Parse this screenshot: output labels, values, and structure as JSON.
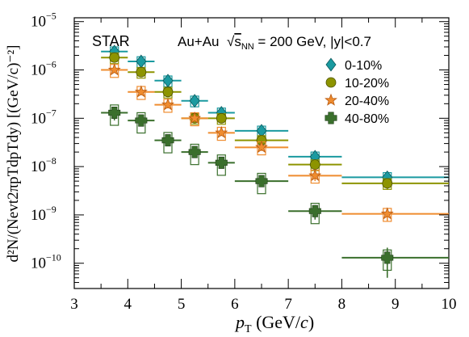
{
  "chart_data": {
    "type": "scatter",
    "title": "",
    "experiment_label": "STAR",
    "system_label": {
      "prefix": "Au+Au  ",
      "sqrt": "√",
      "s_main": "s",
      "s_sub": "NN",
      "suffix": " = 200 GeV, |y|<0.7"
    },
    "x_axis": {
      "label_main": "p",
      "label_sub": "T",
      "label_unit": " (GeV/",
      "label_unit_c": "c",
      "label_close": ")",
      "range": [
        3,
        10
      ],
      "ticks": [
        3,
        4,
        5,
        6,
        7,
        8,
        9,
        10
      ]
    },
    "y_axis": {
      "scale": "log",
      "range": [
        3e-11,
        1.2e-05
      ],
      "ticks": [
        {
          "value": 1e-10,
          "label_base": "10",
          "label_exp": "−10"
        },
        {
          "value": 1e-09,
          "label_base": "10",
          "label_exp": "−9"
        },
        {
          "value": 1e-08,
          "label_base": "10",
          "label_exp": "−8"
        },
        {
          "value": 1e-07,
          "label_base": "10",
          "label_exp": "−7"
        },
        {
          "value": 1e-06,
          "label_base": "10",
          "label_exp": "−6"
        },
        {
          "value": 1e-05,
          "label_base": "10",
          "label_exp": "−5"
        }
      ],
      "label": "d²N/(Nevt2πpTdpTdy) [(GeV/c)⁻²]"
    },
    "bin_edges": [
      3.5,
      4.0,
      4.5,
      5.0,
      5.5,
      6.0,
      7.0,
      8.0,
      10.0
    ],
    "x": [
      3.75,
      4.25,
      4.75,
      5.25,
      5.75,
      6.5,
      7.5,
      8.85
    ],
    "series": [
      {
        "name": "0-10%",
        "color": "#1a9aa0",
        "marker": "diamond",
        "values": [
          2.4e-06,
          1.5e-06,
          6e-07,
          2.3e-07,
          1.3e-07,
          5.5e-08,
          1.6e-08,
          6e-09
        ],
        "stat_err": [
          3e-07,
          2e-07,
          8e-08,
          4e-08,
          2e-08,
          7e-09,
          3e-09,
          1.5e-09
        ],
        "sys_frac": 0.25
      },
      {
        "name": "10-20%",
        "color": "#8d9400",
        "marker": "circle",
        "values": [
          1.8e-06,
          9e-07,
          3.5e-07,
          1e-07,
          1e-07,
          3.5e-08,
          1.1e-08,
          4.5e-09
        ],
        "stat_err": [
          2.5e-07,
          1.5e-07,
          6e-08,
          2e-08,
          2e-08,
          6e-09,
          2.5e-09,
          1.2e-09
        ],
        "sys_frac": 0.25
      },
      {
        "name": "20-40%",
        "color": "#ef8c2f",
        "marker": "star",
        "values": [
          1e-06,
          3.5e-07,
          1.9e-07,
          1e-07,
          5e-08,
          2.5e-08,
          6.5e-09,
          1.05e-09
        ],
        "stat_err": [
          1.2e-07,
          5e-08,
          3e-08,
          1.5e-08,
          7e-09,
          4e-09,
          1.5e-09,
          3e-10
        ],
        "sys_frac": 0.3
      },
      {
        "name": "40-80%",
        "color": "#3a6f2c",
        "marker": "cross",
        "values": [
          1.3e-07,
          9e-08,
          3.5e-08,
          2e-08,
          1.2e-08,
          5e-09,
          1.2e-09,
          1.3e-10
        ],
        "stat_err": [
          4e-08,
          1.5e-08,
          6e-09,
          3e-09,
          2e-09,
          8e-10,
          4e-10,
          8e-11
        ],
        "sys_frac": 0.45
      }
    ],
    "legend_position": "top-right"
  }
}
